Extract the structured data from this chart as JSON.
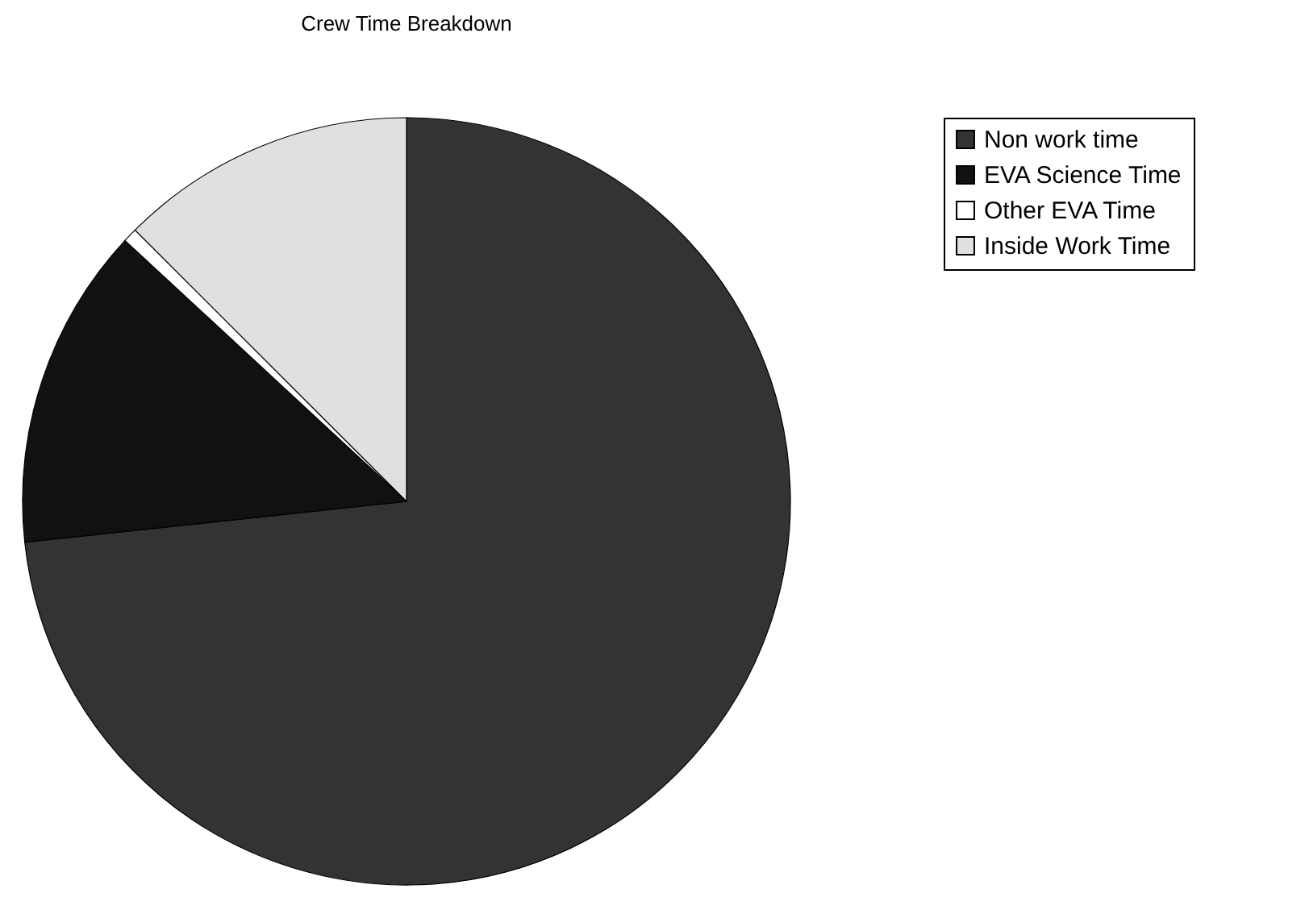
{
  "chart_data": {
    "type": "pie",
    "title": "Crew Time Breakdown",
    "categories": [
      "Non work time",
      "EVA Science Time",
      "Other EVA Time",
      "Inside Work Time"
    ],
    "values": [
      73.3,
      13.6,
      0.6,
      12.5
    ],
    "colors": [
      "#333333",
      "#111111",
      "#ffffff",
      "#e0e0e0"
    ],
    "legend": "right"
  }
}
